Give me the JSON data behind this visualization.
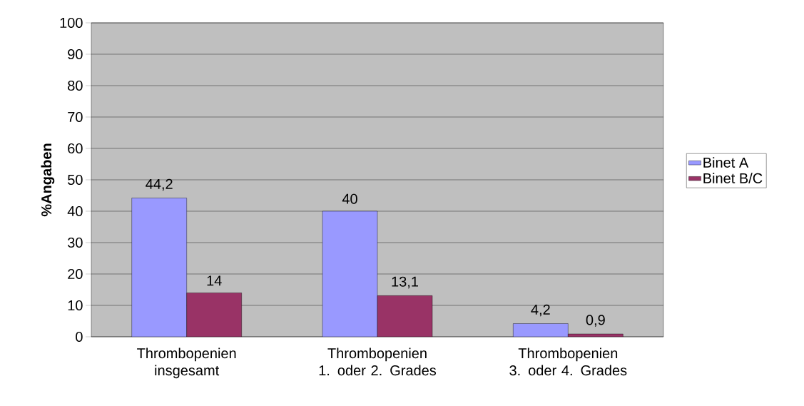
{
  "chart_data": {
    "type": "bar",
    "ylabel": "%Angaben",
    "categories": [
      "Thrombopenien insgesamt",
      "Thrombopenien 1. oder 2. Grades",
      "Thrombopenien 3. oder 4. Grades"
    ],
    "series": [
      {
        "name": "Binet A",
        "color": "#9999ff",
        "values": [
          44.2,
          40,
          4.2
        ],
        "value_labels": [
          "44,2",
          "40",
          "4,2"
        ]
      },
      {
        "name": "Binet B/C",
        "color": "#993366",
        "values": [
          14,
          13.1,
          0.9
        ],
        "value_labels": [
          "14",
          "13,1",
          "0,9"
        ]
      }
    ],
    "ylim": [
      0,
      100
    ],
    "yticks": [
      0,
      10,
      20,
      30,
      40,
      50,
      60,
      70,
      80,
      90,
      100
    ],
    "grid": "y",
    "legend": "right"
  }
}
